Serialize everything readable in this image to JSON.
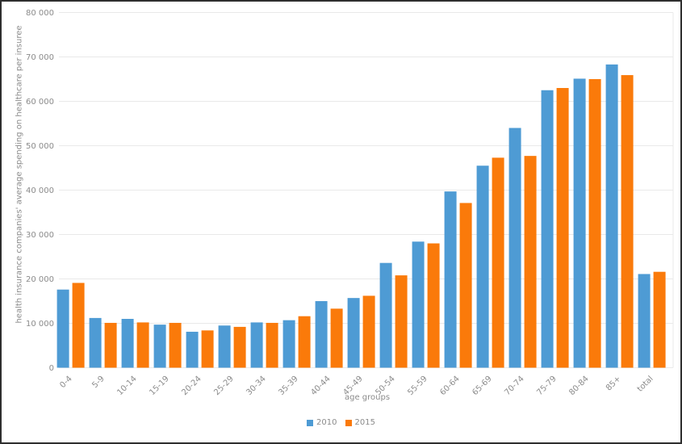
{
  "window": {
    "background": "#ffffff",
    "border_color": "#2e2e2e"
  },
  "chart_data": {
    "type": "bar",
    "title": "",
    "xlabel": "age groups",
    "ylabel": "health insurance companies' average spending on healthcare per insuree",
    "categories": [
      "0-4",
      "5-9",
      "10-14",
      "15-19",
      "20-24",
      "25-29",
      "30-34",
      "35-39",
      "40-44",
      "45-49",
      "50-54",
      "55-59",
      "60-64",
      "65-69",
      "70-74",
      "75-79",
      "80-84",
      "85+",
      "total"
    ],
    "series": [
      {
        "name": "2010",
        "color": "#4e9bd4",
        "values": [
          17600,
          11200,
          11000,
          9700,
          8100,
          9500,
          10200,
          10700,
          15000,
          15700,
          23600,
          28400,
          39700,
          45500,
          54000,
          62500,
          65100,
          68300,
          21100
        ]
      },
      {
        "name": "2015",
        "color": "#fa7a0a",
        "values": [
          19100,
          10100,
          10200,
          10100,
          8400,
          9200,
          10100,
          11600,
          13300,
          16200,
          20800,
          28000,
          37100,
          47300,
          47700,
          63000,
          65000,
          65900,
          21600
        ]
      }
    ],
    "ylim": [
      0,
      80000
    ],
    "yticks": [
      0,
      10000,
      20000,
      30000,
      40000,
      50000,
      60000,
      70000,
      80000
    ],
    "ytick_labels": [
      "0",
      "10 000",
      "20 000",
      "30 000",
      "40 000",
      "50 000",
      "60 000",
      "70 000",
      "80 000"
    ],
    "grid": "horizontal",
    "legend_position": "bottom-center",
    "text_color": "#8b8b8b",
    "grid_color": "#e9e9e9"
  }
}
